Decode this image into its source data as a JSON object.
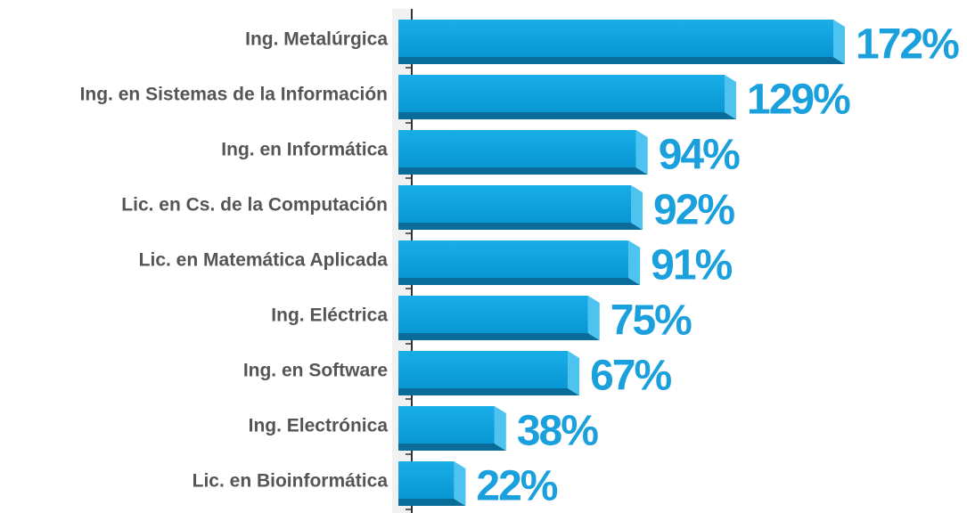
{
  "chart_data": {
    "type": "bar",
    "orientation": "horizontal",
    "categories": [
      "Ing. Metalúrgica",
      "Ing. en Sistemas de la Información",
      "Ing. en Informática",
      "Lic. en Cs. de la Computación",
      "Lic. en Matemática Aplicada",
      "Ing. Eléctrica",
      "Ing. en Software",
      "Ing. Electrónica",
      "Lic. en Bioinformática"
    ],
    "values": [
      172,
      129,
      94,
      92,
      91,
      75,
      67,
      38,
      22
    ],
    "value_labels": [
      "172%",
      "129%",
      "94%",
      "92%",
      "91%",
      "75%",
      "67%",
      "38%",
      "22%"
    ],
    "color": "#0ea4e2"
  }
}
